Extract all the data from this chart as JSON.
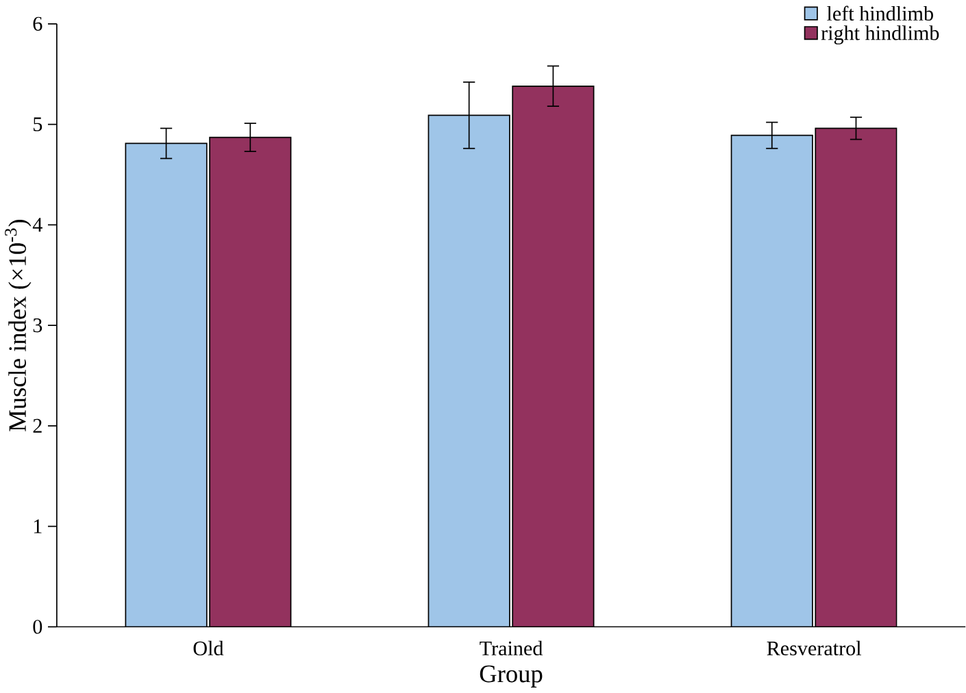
{
  "chart_data": {
    "type": "bar",
    "xlabel": "Group",
    "ylabel": "Muscle index (×10$^{-3}$)",
    "categories": [
      "Old",
      "Trained",
      "Resveratrol"
    ],
    "series": [
      {
        "name": "left hindlimb",
        "color": "#9fc5e8",
        "values": [
          4.81,
          5.09,
          4.89
        ],
        "errors": [
          0.15,
          0.33,
          0.13
        ]
      },
      {
        "name": "right hindlimb",
        "color": "#93325e",
        "values": [
          4.87,
          5.38,
          4.96
        ],
        "errors": [
          0.14,
          0.2,
          0.11
        ]
      }
    ],
    "ylim": [
      0,
      6
    ],
    "yticks": [
      0,
      1,
      2,
      3,
      4,
      5,
      6
    ],
    "grid": false,
    "legend": "top right"
  }
}
